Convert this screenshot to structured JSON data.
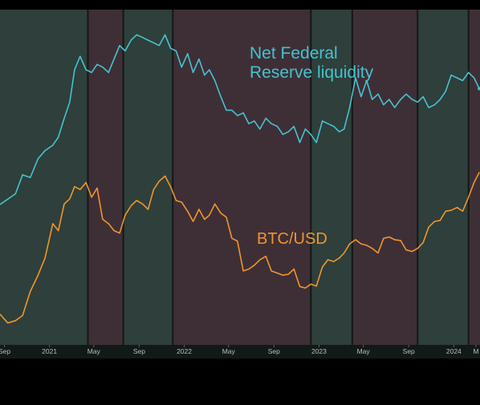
{
  "chart_data": {
    "type": "line",
    "title": "",
    "xlabel": "",
    "ylabel": "",
    "x_range": [
      "2020-08-20",
      "2024-03-12"
    ],
    "x_ticks": [
      {
        "date": "2020-09-01",
        "label": "Sep"
      },
      {
        "date": "2021-01-01",
        "label": "2021"
      },
      {
        "date": "2021-05-01",
        "label": "May"
      },
      {
        "date": "2021-09-01",
        "label": "Sep"
      },
      {
        "date": "2022-01-01",
        "label": "2022"
      },
      {
        "date": "2022-05-01",
        "label": "May"
      },
      {
        "date": "2022-09-01",
        "label": "Sep"
      },
      {
        "date": "2023-01-01",
        "label": "2023"
      },
      {
        "date": "2023-05-01",
        "label": "May"
      },
      {
        "date": "2023-09-01",
        "label": "Sep"
      },
      {
        "date": "2024-01-01",
        "label": "2024"
      },
      {
        "date": "2024-03-01",
        "label": "M"
      }
    ],
    "grid": false,
    "legend": "none",
    "regimes": [
      {
        "start": "2020-08-20",
        "end": "2021-04-15",
        "kind": "liquidity-rising",
        "color": "#2f3f3b"
      },
      {
        "start": "2021-04-15",
        "end": "2021-07-20",
        "kind": "liquidity-falling",
        "color": "#3e2f37"
      },
      {
        "start": "2021-07-20",
        "end": "2021-12-01",
        "kind": "liquidity-rising",
        "color": "#2f3f3b"
      },
      {
        "start": "2021-12-01",
        "end": "2022-12-10",
        "kind": "liquidity-falling",
        "color": "#3e2f37"
      },
      {
        "start": "2022-12-10",
        "end": "2023-04-01",
        "kind": "liquidity-rising",
        "color": "#2f3f3b"
      },
      {
        "start": "2023-04-01",
        "end": "2023-09-25",
        "kind": "liquidity-falling",
        "color": "#3e2f37"
      },
      {
        "start": "2023-09-25",
        "end": "2024-02-10",
        "kind": "liquidity-rising",
        "color": "#2f3f3b"
      },
      {
        "start": "2024-02-10",
        "end": "2024-03-12",
        "kind": "liquidity-falling",
        "color": "#3e2f37"
      }
    ],
    "series": [
      {
        "name": "Net Federal Reserve liquidity",
        "color": "#44c3cf",
        "label_lines": [
          "Net Federal",
          "Reserve liquidity"
        ],
        "axis": "left",
        "x": [
          "2020-08-20",
          "2020-09-10",
          "2020-10-01",
          "2020-10-20",
          "2020-11-10",
          "2020-12-01",
          "2020-12-20",
          "2021-01-10",
          "2021-01-25",
          "2021-02-10",
          "2021-02-25",
          "2021-03-10",
          "2021-03-25",
          "2021-04-10",
          "2021-04-25",
          "2021-05-10",
          "2021-05-25",
          "2021-06-10",
          "2021-06-25",
          "2021-07-10",
          "2021-07-25",
          "2021-08-10",
          "2021-08-25",
          "2021-09-10",
          "2021-09-25",
          "2021-10-10",
          "2021-10-25",
          "2021-11-10",
          "2021-11-25",
          "2021-12-10",
          "2021-12-25",
          "2022-01-10",
          "2022-01-25",
          "2022-02-10",
          "2022-02-25",
          "2022-03-10",
          "2022-03-25",
          "2022-04-10",
          "2022-04-25",
          "2022-05-10",
          "2022-05-25",
          "2022-06-10",
          "2022-06-25",
          "2022-07-10",
          "2022-07-25",
          "2022-08-10",
          "2022-08-25",
          "2022-09-10",
          "2022-09-25",
          "2022-10-10",
          "2022-10-25",
          "2022-11-10",
          "2022-11-25",
          "2022-12-10",
          "2022-12-25",
          "2023-01-10",
          "2023-01-25",
          "2023-02-10",
          "2023-02-25",
          "2023-03-10",
          "2023-03-25",
          "2023-04-10",
          "2023-04-25",
          "2023-05-10",
          "2023-05-25",
          "2023-06-10",
          "2023-06-25",
          "2023-07-10",
          "2023-07-25",
          "2023-08-10",
          "2023-08-25",
          "2023-09-10",
          "2023-09-25",
          "2023-10-10",
          "2023-10-25",
          "2023-11-10",
          "2023-11-25",
          "2023-12-10",
          "2023-12-25",
          "2024-01-10",
          "2024-01-25",
          "2024-02-10",
          "2024-02-25",
          "2024-03-10"
        ],
        "y": [
          6.0,
          6.1,
          6.2,
          6.55,
          6.5,
          6.85,
          7.0,
          7.1,
          7.25,
          7.6,
          7.9,
          8.5,
          8.75,
          8.5,
          8.45,
          8.6,
          8.55,
          8.45,
          8.7,
          8.95,
          8.85,
          9.05,
          9.15,
          9.1,
          9.05,
          9.0,
          8.95,
          9.15,
          8.9,
          8.85,
          8.55,
          8.8,
          8.45,
          8.7,
          8.4,
          8.5,
          8.3,
          8.0,
          7.75,
          7.75,
          7.65,
          7.7,
          7.5,
          7.55,
          7.4,
          7.6,
          7.5,
          7.45,
          7.3,
          7.35,
          7.45,
          7.15,
          7.4,
          7.3,
          7.15,
          7.55,
          7.5,
          7.45,
          7.35,
          7.4,
          7.8,
          8.35,
          8.0,
          8.3,
          7.95,
          8.05,
          7.85,
          7.95,
          7.8,
          7.95,
          8.05,
          7.95,
          7.9,
          8.0,
          7.8,
          7.85,
          7.95,
          8.1,
          8.4,
          8.35,
          8.3,
          8.45,
          8.35,
          8.15
        ]
      },
      {
        "name": "BTC/USD",
        "color": "#f0952c",
        "label_lines": [
          "BTC/USD"
        ],
        "axis": "right",
        "x": [
          "2020-08-20",
          "2020-09-10",
          "2020-10-01",
          "2020-10-20",
          "2020-11-10",
          "2020-12-01",
          "2020-12-20",
          "2021-01-10",
          "2021-01-25",
          "2021-02-10",
          "2021-02-25",
          "2021-03-10",
          "2021-03-25",
          "2021-04-10",
          "2021-04-25",
          "2021-05-10",
          "2021-05-25",
          "2021-06-10",
          "2021-06-25",
          "2021-07-10",
          "2021-07-25",
          "2021-08-10",
          "2021-08-25",
          "2021-09-10",
          "2021-09-25",
          "2021-10-10",
          "2021-10-25",
          "2021-11-10",
          "2021-11-25",
          "2021-12-10",
          "2021-12-25",
          "2022-01-10",
          "2022-01-25",
          "2022-02-10",
          "2022-02-25",
          "2022-03-10",
          "2022-03-25",
          "2022-04-10",
          "2022-04-25",
          "2022-05-10",
          "2022-05-25",
          "2022-06-10",
          "2022-06-25",
          "2022-07-10",
          "2022-07-25",
          "2022-08-10",
          "2022-08-25",
          "2022-09-10",
          "2022-09-25",
          "2022-10-10",
          "2022-10-25",
          "2022-11-10",
          "2022-11-25",
          "2022-12-10",
          "2022-12-25",
          "2023-01-10",
          "2023-01-25",
          "2023-02-10",
          "2023-02-25",
          "2023-03-10",
          "2023-03-25",
          "2023-04-10",
          "2023-04-25",
          "2023-05-10",
          "2023-05-25",
          "2023-06-10",
          "2023-06-25",
          "2023-07-10",
          "2023-07-25",
          "2023-08-10",
          "2023-08-25",
          "2023-09-10",
          "2023-09-25",
          "2023-10-10",
          "2023-10-25",
          "2023-11-10",
          "2023-11-25",
          "2023-12-10",
          "2023-12-25",
          "2024-01-10",
          "2024-01-25",
          "2024-02-10",
          "2024-02-25",
          "2024-03-10"
        ],
        "y": [
          11700,
          10500,
          10800,
          11500,
          15500,
          19000,
          23500,
          36000,
          33000,
          46000,
          49000,
          57000,
          55000,
          60000,
          50000,
          56000,
          38000,
          36000,
          33000,
          32000,
          40000,
          45000,
          48000,
          46000,
          43000,
          55000,
          61000,
          65000,
          57000,
          48000,
          47000,
          42000,
          37000,
          43000,
          38000,
          40000,
          46000,
          41000,
          39000,
          30000,
          29000,
          20000,
          20500,
          21500,
          23000,
          24000,
          20000,
          19500,
          19000,
          19200,
          20500,
          16500,
          16200,
          17000,
          16600,
          21000,
          23000,
          22500,
          23500,
          25000,
          28000,
          29500,
          28000,
          27500,
          26500,
          25000,
          30000,
          30500,
          29500,
          29200,
          26000,
          25500,
          26500,
          28500,
          34500,
          37000,
          37500,
          42000,
          42500,
          44000,
          42000,
          50000,
          60000,
          68000
        ]
      }
    ],
    "y_scale_left": {
      "min": 5.0,
      "max": 9.4,
      "unit": "trillion USD"
    },
    "y_scale_right": {
      "type": "log",
      "min": 9000,
      "max": 75000
    }
  }
}
